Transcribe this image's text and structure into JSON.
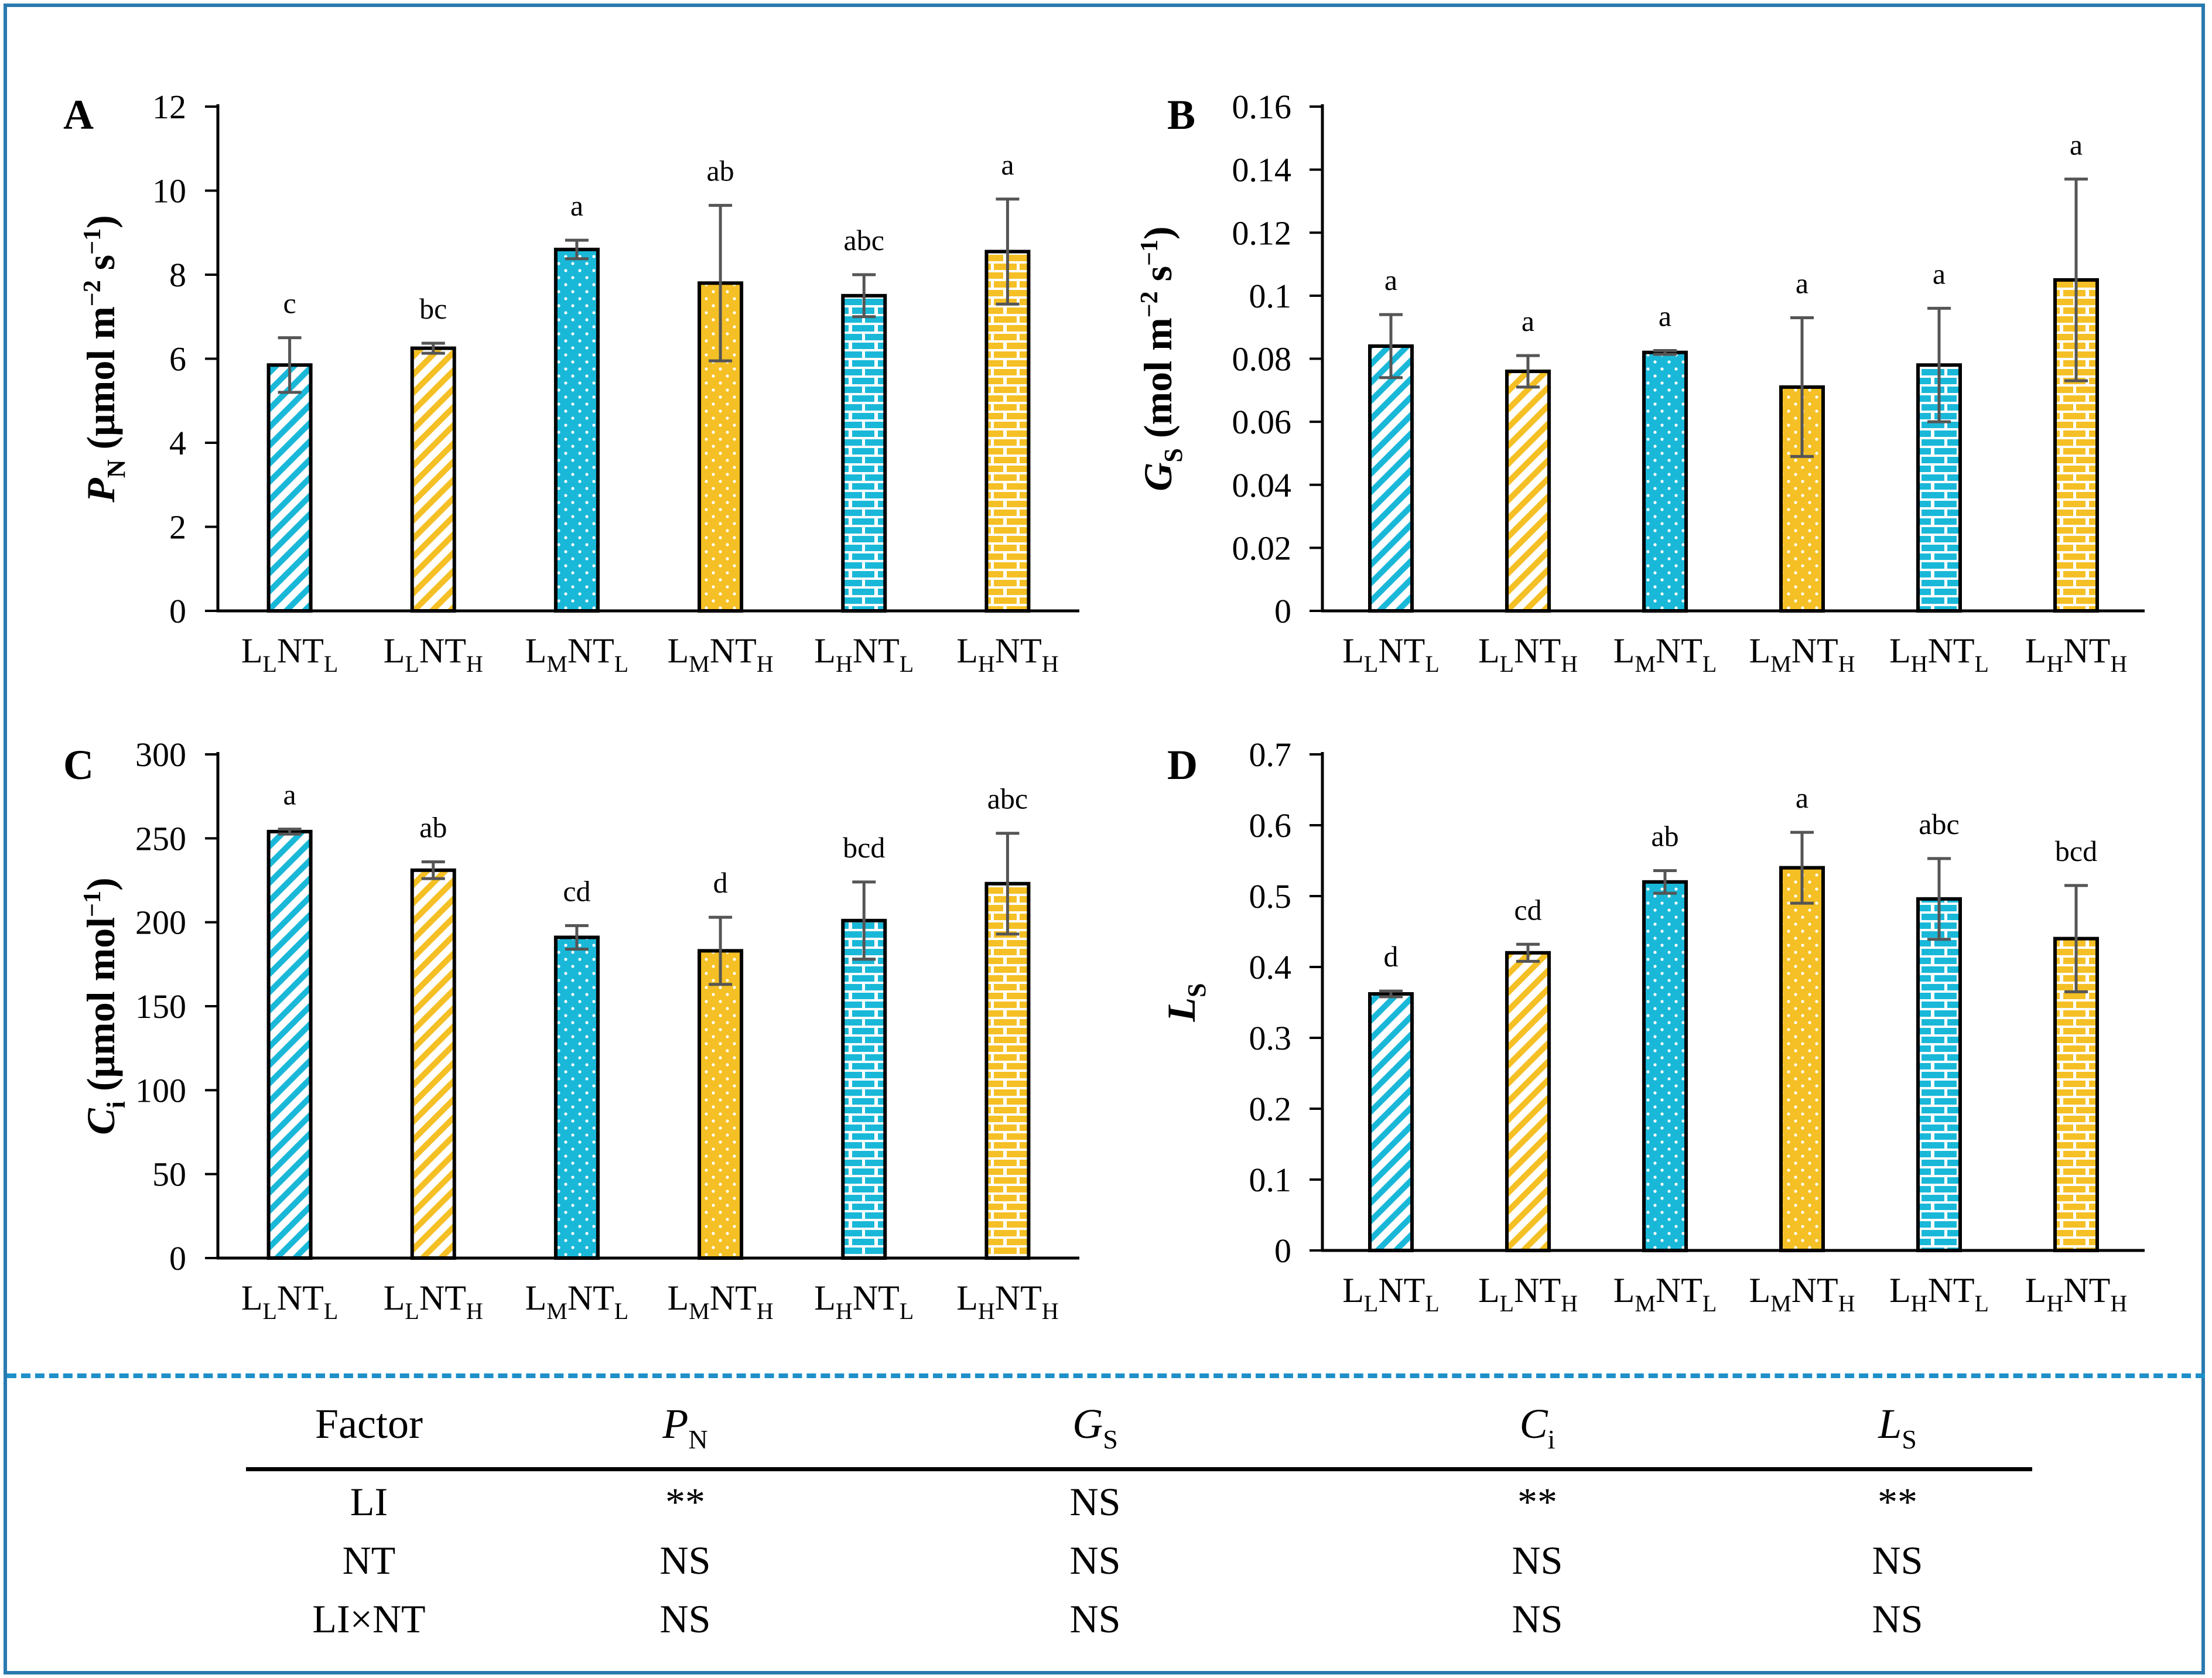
{
  "colors": {
    "cyan": "#1ab8d8",
    "gold": "#f5c025",
    "frame": "#2a7ab0",
    "dash": "#1e8fc8",
    "error_bar": "#555555"
  },
  "chart_data": [
    {
      "panel": "A",
      "type": "bar",
      "ylabel_main": "P",
      "ylabel_sub": "N",
      "ylabel_unit": "(μmol m",
      "ylabel_exp1": "−2",
      "ylabel_mid": " s",
      "ylabel_exp2": "−1",
      "ylabel_close": ")",
      "ylim": [
        0,
        12
      ],
      "yticks": [
        "0",
        "2",
        "4",
        "6",
        "8",
        "10",
        "12"
      ],
      "categories": [
        {
          "main": "L",
          "sub1": "L",
          "mid": "NT",
          "sub2": "L"
        },
        {
          "main": "L",
          "sub1": "L",
          "mid": "NT",
          "sub2": "H"
        },
        {
          "main": "L",
          "sub1": "M",
          "mid": "NT",
          "sub2": "L"
        },
        {
          "main": "L",
          "sub1": "M",
          "mid": "NT",
          "sub2": "H"
        },
        {
          "main": "L",
          "sub1": "H",
          "mid": "NT",
          "sub2": "L"
        },
        {
          "main": "L",
          "sub1": "H",
          "mid": "NT",
          "sub2": "H"
        }
      ],
      "values": [
        5.85,
        6.25,
        8.6,
        7.8,
        7.5,
        8.55
      ],
      "errors": [
        0.65,
        0.12,
        0.22,
        1.85,
        0.5,
        1.25
      ],
      "letters": [
        "c",
        "bc",
        "a",
        "ab",
        "abc",
        "a"
      ]
    },
    {
      "panel": "B",
      "type": "bar",
      "ylabel_main": "G",
      "ylabel_sub": "S",
      "ylabel_unit": "(mol m",
      "ylabel_exp1": "−2",
      "ylabel_mid": " s",
      "ylabel_exp2": "−1",
      "ylabel_close": ")",
      "ylim": [
        0,
        0.16
      ],
      "yticks": [
        "0",
        "0.02",
        "0.04",
        "0.06",
        "0.08",
        "0.1",
        "0.12",
        "0.14",
        "0.16"
      ],
      "categories": [
        {
          "main": "L",
          "sub1": "L",
          "mid": "NT",
          "sub2": "L"
        },
        {
          "main": "L",
          "sub1": "L",
          "mid": "NT",
          "sub2": "H"
        },
        {
          "main": "L",
          "sub1": "M",
          "mid": "NT",
          "sub2": "L"
        },
        {
          "main": "L",
          "sub1": "M",
          "mid": "NT",
          "sub2": "H"
        },
        {
          "main": "L",
          "sub1": "H",
          "mid": "NT",
          "sub2": "L"
        },
        {
          "main": "L",
          "sub1": "H",
          "mid": "NT",
          "sub2": "H"
        }
      ],
      "values": [
        0.084,
        0.076,
        0.082,
        0.071,
        0.078,
        0.105
      ],
      "errors": [
        0.01,
        0.005,
        0.0006,
        0.022,
        0.018,
        0.032
      ],
      "letters": [
        "a",
        "a",
        "a",
        "a",
        "a",
        "a"
      ]
    },
    {
      "panel": "C",
      "type": "bar",
      "ylabel_main": "C",
      "ylabel_sub": "i",
      "ylabel_unit": "(μmol mol",
      "ylabel_exp1": "−1",
      "ylabel_mid": "",
      "ylabel_exp2": "",
      "ylabel_close": ")",
      "ylim": [
        0,
        300
      ],
      "yticks": [
        "0",
        "50",
        "100",
        "150",
        "200",
        "250",
        "300"
      ],
      "categories": [
        {
          "main": "L",
          "sub1": "L",
          "mid": "NT",
          "sub2": "L"
        },
        {
          "main": "L",
          "sub1": "L",
          "mid": "NT",
          "sub2": "H"
        },
        {
          "main": "L",
          "sub1": "M",
          "mid": "NT",
          "sub2": "L"
        },
        {
          "main": "L",
          "sub1": "M",
          "mid": "NT",
          "sub2": "H"
        },
        {
          "main": "L",
          "sub1": "H",
          "mid": "NT",
          "sub2": "L"
        },
        {
          "main": "L",
          "sub1": "H",
          "mid": "NT",
          "sub2": "H"
        }
      ],
      "values": [
        254,
        231,
        191,
        183,
        201,
        223
      ],
      "errors": [
        1.5,
        5,
        7,
        20,
        23,
        30
      ],
      "letters": [
        "a",
        "ab",
        "cd",
        "d",
        "bcd",
        "abc"
      ]
    },
    {
      "panel": "D",
      "type": "bar",
      "ylabel_main": "L",
      "ylabel_sub": "S",
      "ylabel_unit": "",
      "ylabel_exp1": "",
      "ylabel_mid": "",
      "ylabel_exp2": "",
      "ylabel_close": "",
      "ylim": [
        0,
        0.7
      ],
      "yticks": [
        "0",
        "0.1",
        "0.2",
        "0.3",
        "0.4",
        "0.5",
        "0.6",
        "0.7"
      ],
      "categories": [
        {
          "main": "L",
          "sub1": "L",
          "mid": "NT",
          "sub2": "L"
        },
        {
          "main": "L",
          "sub1": "L",
          "mid": "NT",
          "sub2": "H"
        },
        {
          "main": "L",
          "sub1": "M",
          "mid": "NT",
          "sub2": "L"
        },
        {
          "main": "L",
          "sub1": "M",
          "mid": "NT",
          "sub2": "H"
        },
        {
          "main": "L",
          "sub1": "H",
          "mid": "NT",
          "sub2": "L"
        },
        {
          "main": "L",
          "sub1": "H",
          "mid": "NT",
          "sub2": "H"
        }
      ],
      "values": [
        0.362,
        0.42,
        0.52,
        0.54,
        0.496,
        0.44
      ],
      "errors": [
        0.004,
        0.012,
        0.016,
        0.05,
        0.057,
        0.075
      ],
      "letters": [
        "d",
        "cd",
        "ab",
        "a",
        "abc",
        "bcd"
      ]
    }
  ],
  "anova": {
    "headers": [
      {
        "main": "Factor",
        "sub": ""
      },
      {
        "main": "P",
        "sub": "N"
      },
      {
        "main": "G",
        "sub": "S"
      },
      {
        "main": "C",
        "sub": "i"
      },
      {
        "main": "L",
        "sub": "S"
      }
    ],
    "rows": [
      [
        "LI",
        "**",
        "NS",
        "**",
        "**"
      ],
      [
        "NT",
        "NS",
        "NS",
        "NS",
        "NS"
      ],
      [
        "LI×NT",
        "NS",
        "NS",
        "NS",
        "NS"
      ]
    ]
  }
}
